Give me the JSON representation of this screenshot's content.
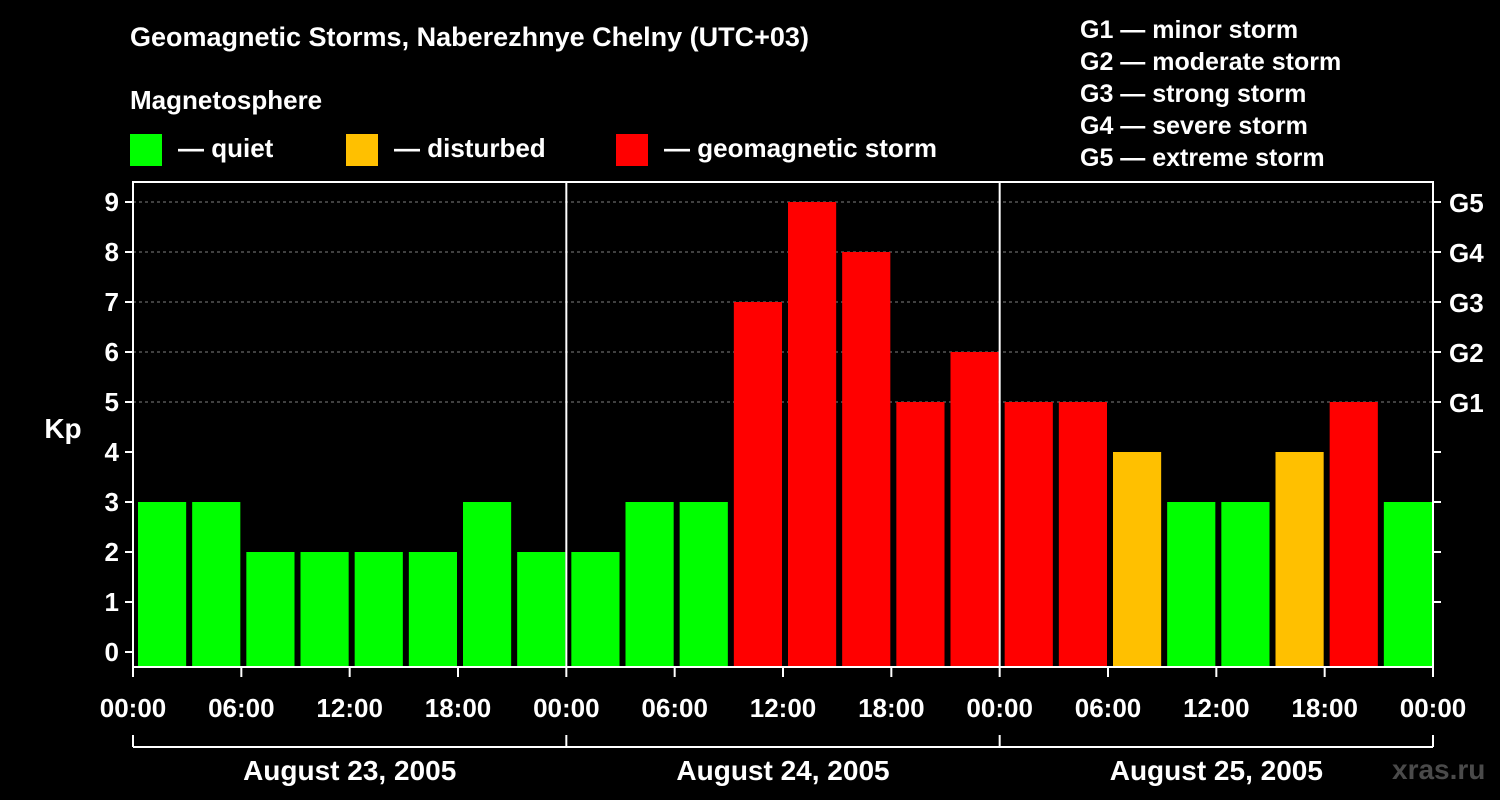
{
  "title": "Geomagnetic Storms, Naberezhnye Chelny (UTC+03)",
  "magnetosphere_label": "Magnetosphere",
  "legend": [
    {
      "label": "— quiet",
      "color": "#00ff00"
    },
    {
      "label": "— disturbed",
      "color": "#ffc000"
    },
    {
      "label": "— geomagnetic storm",
      "color": "#ff0000"
    }
  ],
  "storm_scale": [
    "G1 — minor storm",
    "G2 — moderate storm",
    "G3 — strong storm",
    "G4 — severe storm",
    "G5 — extreme storm"
  ],
  "watermark": "xras.ru",
  "chart_data": {
    "type": "bar",
    "ylabel": "Kp",
    "ylim": [
      0,
      9
    ],
    "yticks": [
      0,
      1,
      2,
      3,
      4,
      5,
      6,
      7,
      8,
      9
    ],
    "right_axis_labels": [
      {
        "kp": 5,
        "label": "G1"
      },
      {
        "kp": 6,
        "label": "G2"
      },
      {
        "kp": 7,
        "label": "G3"
      },
      {
        "kp": 8,
        "label": "G4"
      },
      {
        "kp": 9,
        "label": "G5"
      }
    ],
    "x_tick_labels": [
      "00:00",
      "06:00",
      "12:00",
      "18:00",
      "00:00",
      "06:00",
      "12:00",
      "18:00",
      "00:00",
      "06:00",
      "12:00",
      "18:00",
      "00:00"
    ],
    "days": [
      "August 23, 2005",
      "August 24, 2005",
      "August 25, 2005"
    ],
    "values": [
      3,
      3,
      2,
      2,
      2,
      2,
      3,
      2,
      2,
      3,
      3,
      7,
      9,
      8,
      5,
      6,
      5,
      5,
      4,
      3,
      3,
      4,
      5,
      3
    ],
    "color_rule": {
      "quiet_max": 3,
      "disturbed": 4,
      "storm_min": 5
    },
    "colors": {
      "quiet": "#00ff00",
      "disturbed": "#ffc000",
      "storm": "#ff0000"
    },
    "grid": "dashed horizontal at Kp 5–9"
  }
}
